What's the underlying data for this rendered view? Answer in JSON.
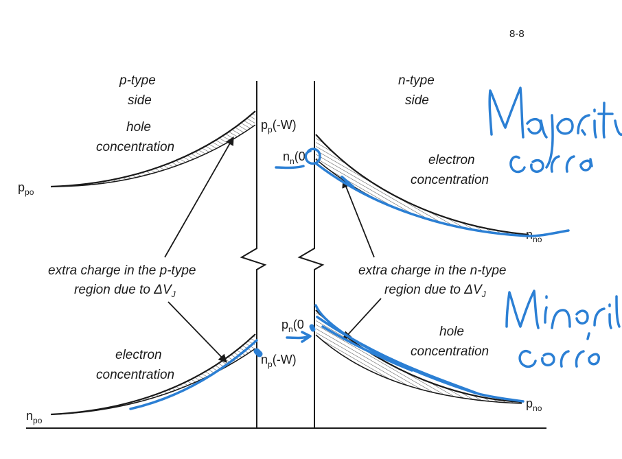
{
  "page_number": "8-8",
  "p_side": {
    "title_line1": "p-type",
    "title_line2": "side",
    "majority_line1": "hole",
    "majority_line2": "concentration",
    "minority_line1": "electron",
    "minority_line2": "concentration",
    "ppo": {
      "main": "p",
      "sub": "po"
    },
    "npo": {
      "main": "n",
      "sub": "po"
    },
    "pp_minus_w": {
      "main": "p",
      "sub": "p",
      "tail": "(-W)"
    },
    "np_minus_w": {
      "main": "n",
      "sub": "p",
      "tail": "(-W)"
    },
    "annotation_line1": "extra charge in the p-type",
    "annotation_line2_prefix": "region due to ΔV",
    "annotation_line2_sub": "J"
  },
  "n_side": {
    "title_line1": "n-type",
    "title_line2": "side",
    "majority_line1": "electron",
    "majority_line2": "concentration",
    "minority_line1": "hole",
    "minority_line2": "concentration",
    "nno": {
      "main": "n",
      "sub": "no"
    },
    "pno": {
      "main": "p",
      "sub": "no"
    },
    "nn_0": {
      "main": "n",
      "sub": "n",
      "tail": "(0"
    },
    "pn_0": {
      "main": "p",
      "sub": "n",
      "tail": "(0"
    },
    "annotation_line1": "extra charge in the n-type",
    "annotation_line2_prefix": "region due to ΔV",
    "annotation_line2_sub": "J"
  },
  "handwriting": {
    "line1": "Majority",
    "line2": "carrier",
    "line3": "Minority",
    "line4": "carrier",
    "ink_color": "#2b7fd4"
  },
  "colors": {
    "ink": "#1a1a1a",
    "hatch": "#555555",
    "pen": "#2b7fd4"
  }
}
